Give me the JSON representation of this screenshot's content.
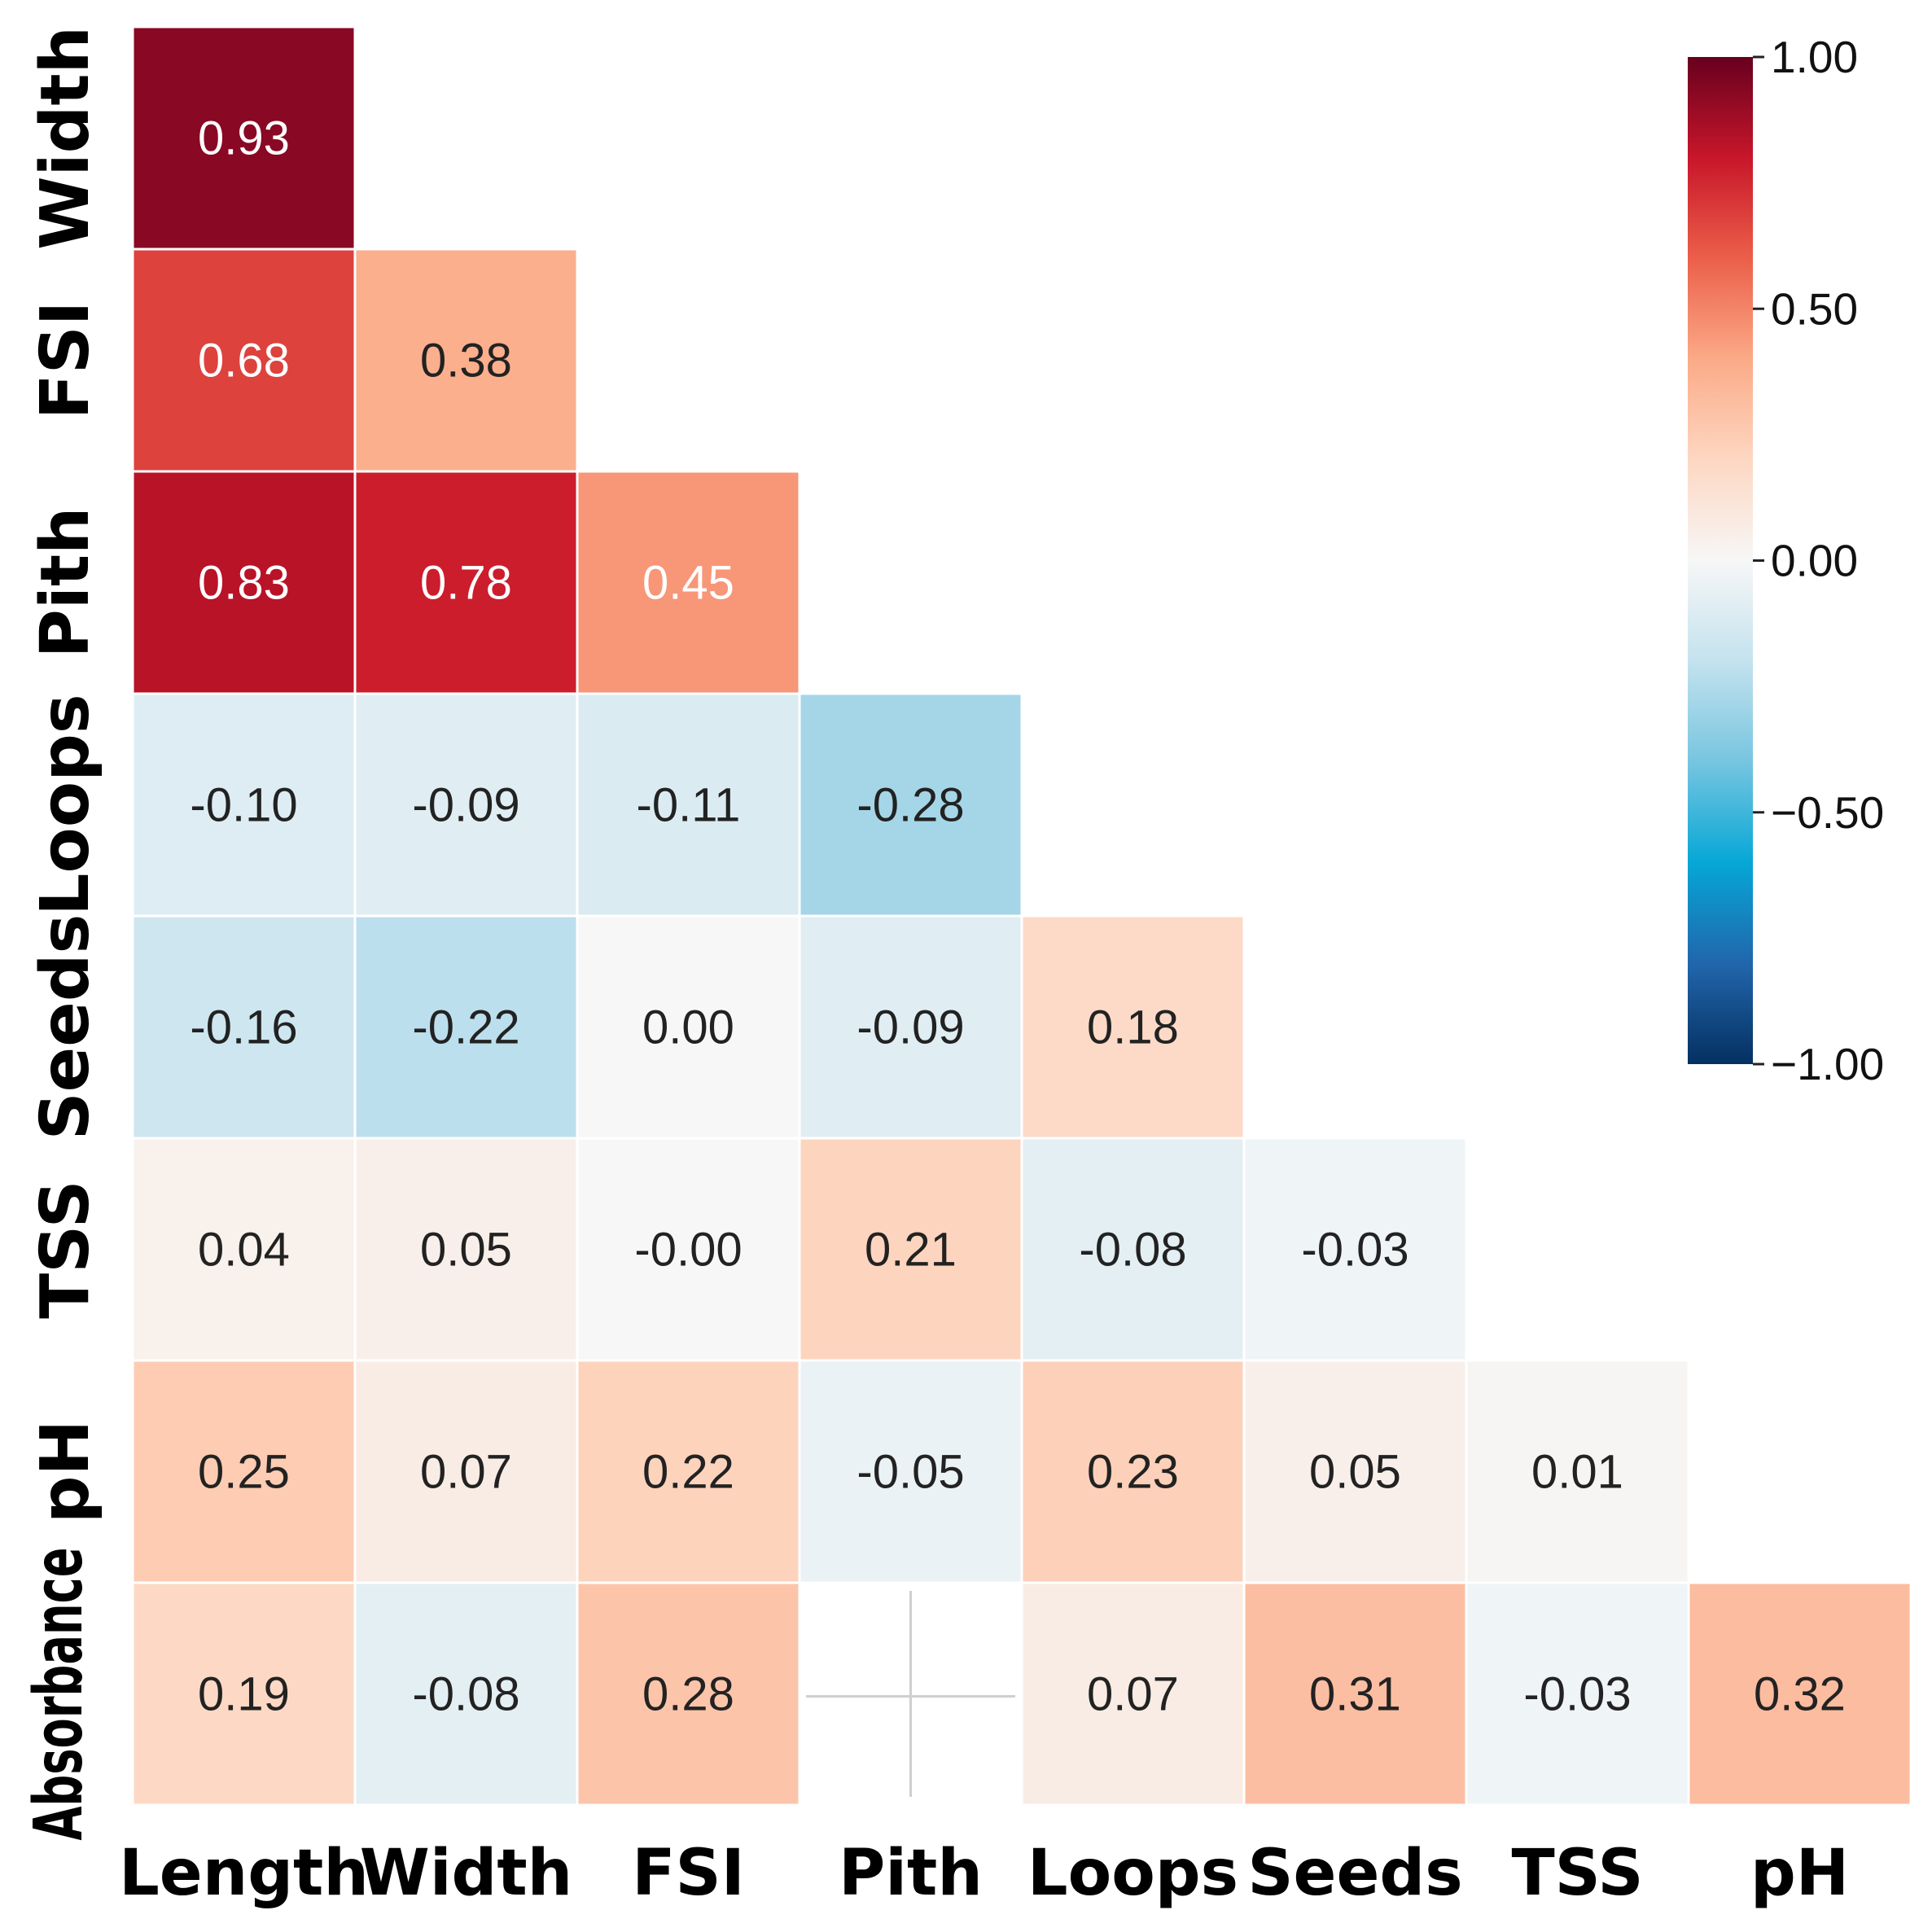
{
  "chart_data": {
    "type": "heatmap",
    "variables": [
      "Length",
      "Width",
      "FSI",
      "Pith",
      "Loops",
      "Seeds",
      "TSS",
      "pH",
      "Absorbance"
    ],
    "row_labels": [
      "Width",
      "FSI",
      "Pith",
      "Loops",
      "Seeds",
      "TSS",
      "pH",
      "Absorbance"
    ],
    "col_labels": [
      "Length",
      "Width",
      "FSI",
      "Pith",
      "Loops",
      "Seeds",
      "TSS",
      "pH"
    ],
    "values": [
      [
        0.93
      ],
      [
        0.68,
        0.38
      ],
      [
        0.83,
        0.78,
        0.45
      ],
      [
        -0.1,
        -0.09,
        -0.11,
        -0.28
      ],
      [
        -0.16,
        -0.22,
        0.0,
        -0.09,
        0.18
      ],
      [
        0.04,
        0.05,
        -0.0,
        0.21,
        -0.08,
        -0.03
      ],
      [
        0.25,
        0.07,
        0.22,
        -0.05,
        0.23,
        0.05,
        0.01
      ],
      [
        0.19,
        -0.08,
        0.28,
        null,
        0.07,
        0.31,
        -0.03,
        0.32
      ]
    ],
    "labels": [
      [
        "0.93"
      ],
      [
        "0.68",
        "0.38"
      ],
      [
        "0.83",
        "0.78",
        "0.45"
      ],
      [
        "-0.10",
        "-0.09",
        "-0.11",
        "-0.28"
      ],
      [
        "-0.16",
        "-0.22",
        "0.00",
        "-0.09",
        "0.18"
      ],
      [
        "0.04",
        "0.05",
        "-0.00",
        "0.21",
        "-0.08",
        "-0.03"
      ],
      [
        "0.25",
        "0.07",
        "0.22",
        "-0.05",
        "0.23",
        "0.05",
        "0.01"
      ],
      [
        "0.19",
        "-0.08",
        "0.28",
        "",
        "0.07",
        "0.31",
        "-0.03",
        "0.32"
      ]
    ],
    "colorbar": {
      "range": [
        -1.0,
        1.0
      ],
      "ticks": [
        1.0,
        0.5,
        0.0,
        -0.5,
        -1.0
      ],
      "tick_labels": [
        "1.00",
        "0.50",
        "0.00",
        "−0.50",
        "−1.00"
      ],
      "colormap": "RdBu_r",
      "position": "top-right"
    },
    "colormap_stops": [
      {
        "v": -1.0,
        "c": "#053061"
      },
      {
        "v": -0.8,
        "c": "#2166ac"
      },
      {
        "v": -0.6,
        "c": "#06a7d6"
      },
      {
        "v": -0.4,
        "c": "#77c5e0"
      },
      {
        "v": -0.2,
        "c": "#c4e2ee"
      },
      {
        "v": 0.0,
        "c": "#f7f7f7"
      },
      {
        "v": 0.2,
        "c": "#fdd7c2"
      },
      {
        "v": 0.4,
        "c": "#fbaa87"
      },
      {
        "v": 0.6,
        "c": "#eb5f49"
      },
      {
        "v": 0.8,
        "c": "#c8162a"
      },
      {
        "v": 1.0,
        "c": "#67001f"
      }
    ],
    "grid": false
  }
}
